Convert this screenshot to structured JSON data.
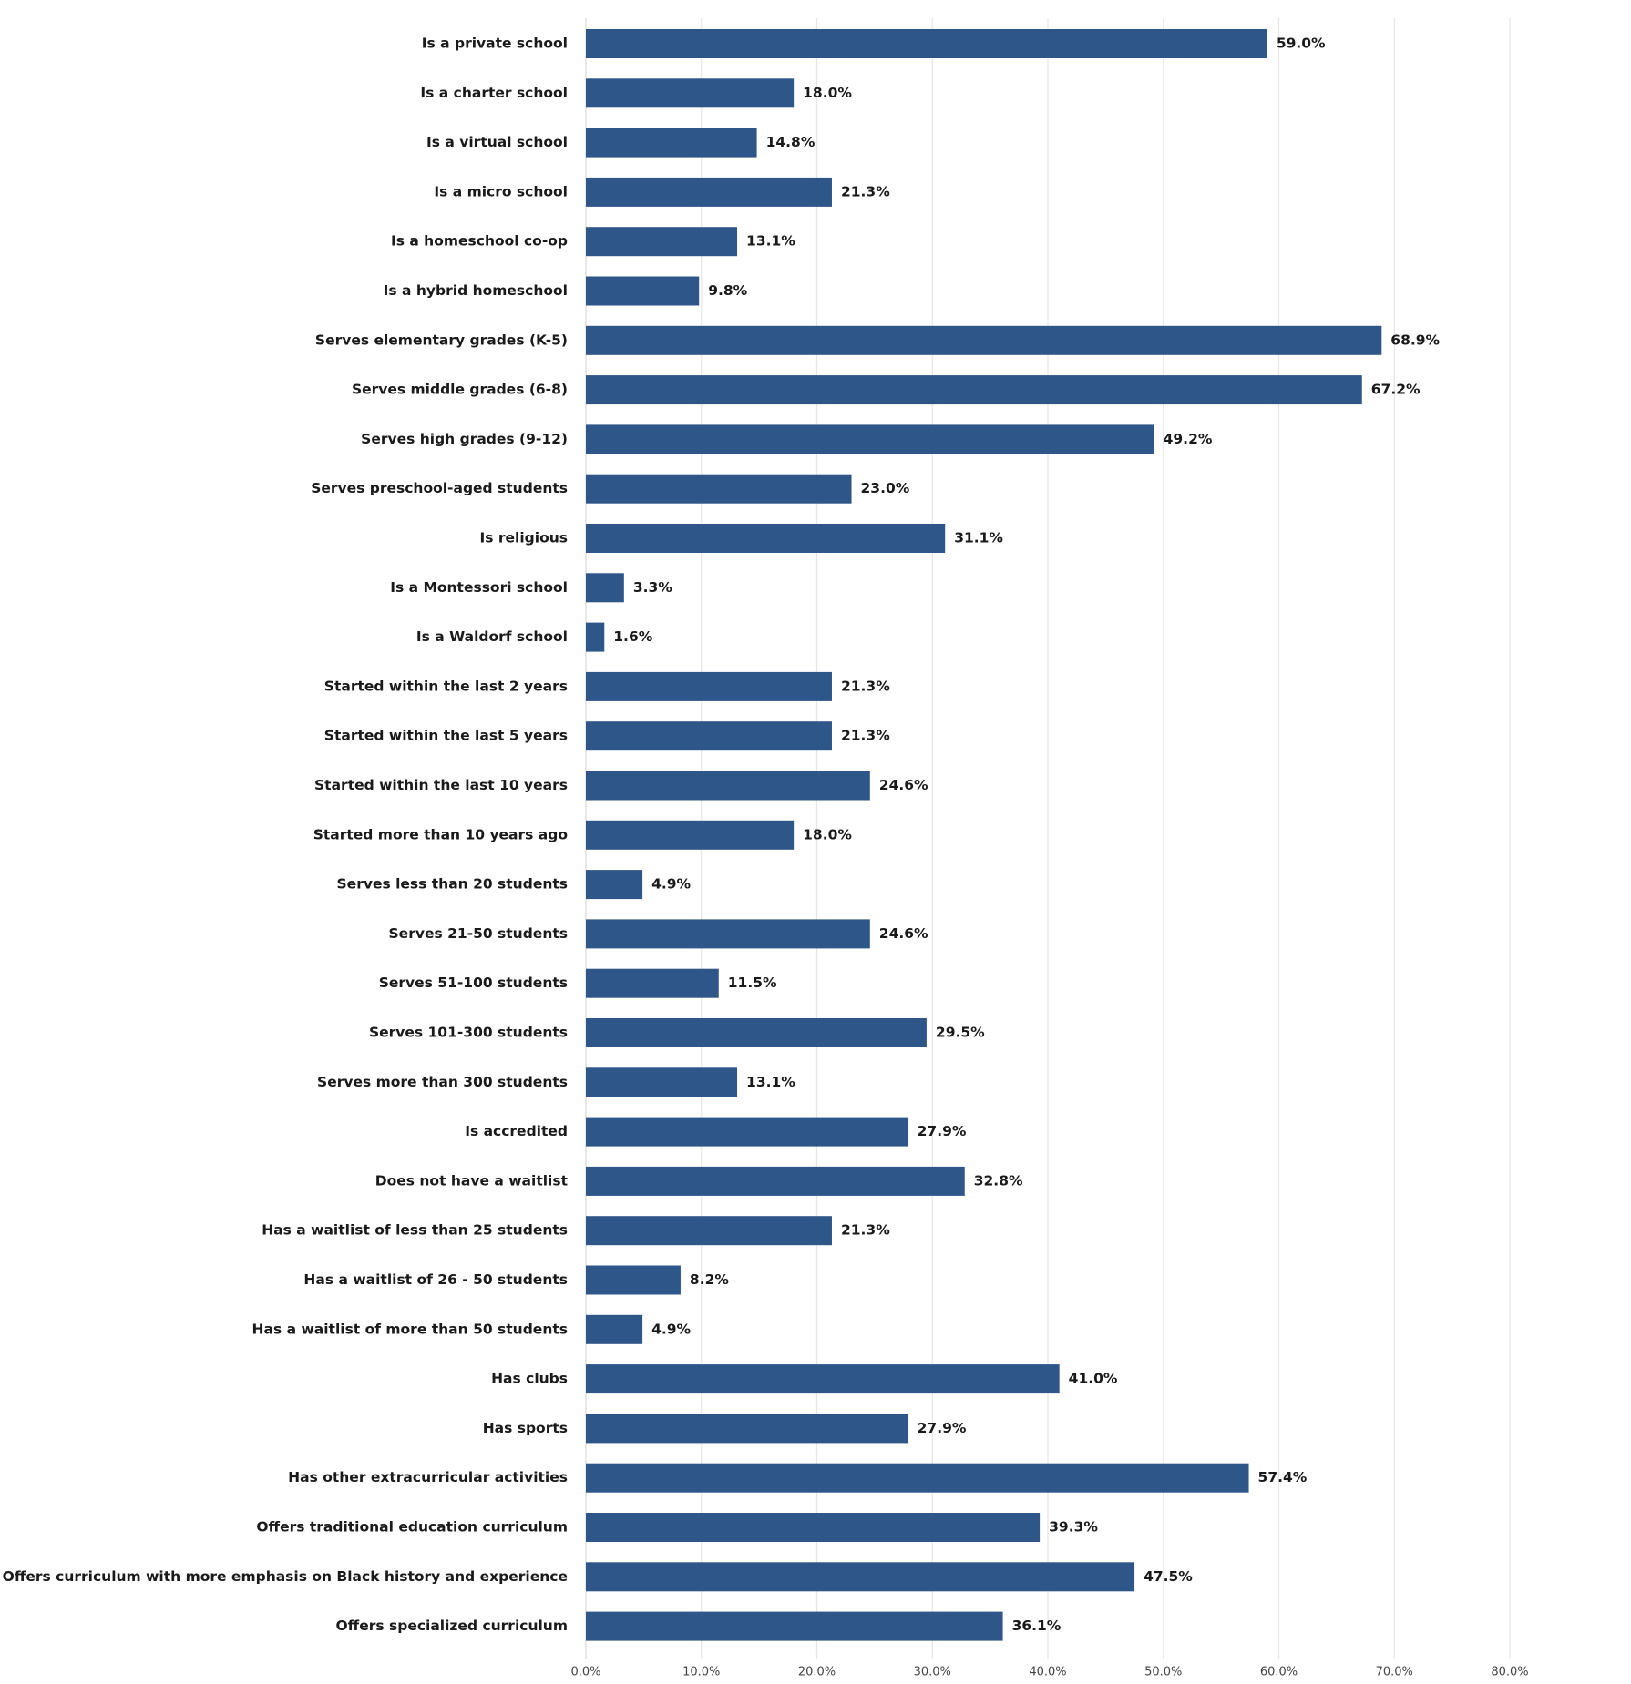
{
  "chart_data": {
    "type": "bar",
    "orientation": "horizontal",
    "bar_color": "#2f5689",
    "grid": true,
    "xlim": [
      0,
      80
    ],
    "x_ticks": [
      {
        "value": 0,
        "label": "0.0%"
      },
      {
        "value": 10,
        "label": "10.0%"
      },
      {
        "value": 20,
        "label": "20.0%"
      },
      {
        "value": 30,
        "label": "30.0%"
      },
      {
        "value": 40,
        "label": "40.0%"
      },
      {
        "value": 50,
        "label": "50.0%"
      },
      {
        "value": 60,
        "label": "60.0%"
      },
      {
        "value": 70,
        "label": "70.0%"
      },
      {
        "value": 80,
        "label": "80.0%"
      }
    ],
    "categories": [
      "Is a private school",
      "Is a charter school",
      "Is a virtual school",
      "Is a micro school",
      "Is a homeschool co-op",
      "Is a hybrid homeschool",
      "Serves elementary grades (K-5)",
      "Serves middle grades (6-8)",
      "Serves high grades (9-12)",
      "Serves preschool-aged students",
      "Is religious",
      "Is a Montessori school",
      "Is a Waldorf school",
      "Started within the last 2 years",
      "Started within the last 5 years",
      "Started within the last 10 years",
      "Started more than 10 years ago",
      "Serves less than 20 students",
      "Serves 21-50 students",
      "Serves 51-100 students",
      "Serves 101-300 students",
      "Serves more than 300 students",
      "Is accredited",
      "Does not have a waitlist",
      "Has a waitlist of less than 25 students",
      "Has a waitlist of 26 - 50 students",
      "Has a waitlist of more than 50 students",
      "Has clubs",
      "Has sports",
      "Has other extracurricular activities",
      "Offers traditional education curriculum",
      "Offers curriculum with more emphasis on Black history and experience",
      "Offers specialized curriculum"
    ],
    "values": [
      59.0,
      18.0,
      14.8,
      21.3,
      13.1,
      9.8,
      68.9,
      67.2,
      49.2,
      23.0,
      31.1,
      3.3,
      1.6,
      21.3,
      21.3,
      24.6,
      18.0,
      4.9,
      24.6,
      11.5,
      29.5,
      13.1,
      27.9,
      32.8,
      21.3,
      8.2,
      4.9,
      41.0,
      27.9,
      57.4,
      39.3,
      47.5,
      36.1
    ],
    "value_labels": [
      "59.0%",
      "18.0%",
      "14.8%",
      "21.3%",
      "13.1%",
      "9.8%",
      "68.9%",
      "67.2%",
      "49.2%",
      "23.0%",
      "31.1%",
      "3.3%",
      "1.6%",
      "21.3%",
      "21.3%",
      "24.6%",
      "18.0%",
      "4.9%",
      "24.6%",
      "11.5%",
      "29.5%",
      "13.1%",
      "27.9%",
      "32.8%",
      "21.3%",
      "8.2%",
      "4.9%",
      "41.0%",
      "27.9%",
      "57.4%",
      "39.3%",
      "47.5%",
      "36.1%"
    ]
  }
}
